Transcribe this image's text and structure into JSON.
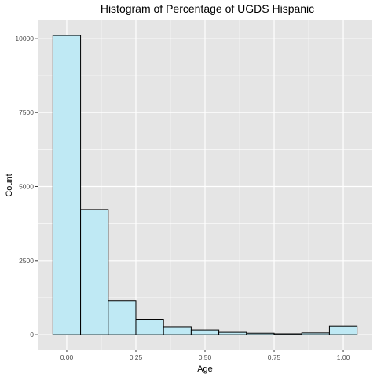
{
  "chart_data": {
    "type": "bar",
    "title": "Histogram of Percentage of UGDS Hispanic",
    "xlabel": "Age",
    "ylabel": "Count",
    "bins": [
      {
        "start": -0.05,
        "end": 0.05,
        "count": 10100
      },
      {
        "start": 0.05,
        "end": 0.15,
        "count": 4220
      },
      {
        "start": 0.15,
        "end": 0.25,
        "count": 1150
      },
      {
        "start": 0.25,
        "end": 0.35,
        "count": 520
      },
      {
        "start": 0.35,
        "end": 0.45,
        "count": 270
      },
      {
        "start": 0.45,
        "end": 0.55,
        "count": 160
      },
      {
        "start": 0.55,
        "end": 0.65,
        "count": 80
      },
      {
        "start": 0.65,
        "end": 0.75,
        "count": 50
      },
      {
        "start": 0.75,
        "end": 0.85,
        "count": 30
      },
      {
        "start": 0.85,
        "end": 0.95,
        "count": 60
      },
      {
        "start": 0.95,
        "end": 1.05,
        "count": 290
      }
    ],
    "xlim": [
      -0.105,
      1.105
    ],
    "ylim": [
      -500,
      10605
    ],
    "x_ticks": [
      0,
      0.25,
      0.5,
      0.75,
      1
    ],
    "x_tick_labels": [
      "0.00",
      "0.25",
      "0.50",
      "0.75",
      "1.00"
    ],
    "y_ticks": [
      0,
      2500,
      5000,
      7500,
      10000
    ],
    "y_tick_labels": [
      "0",
      "2500",
      "5000",
      "7500",
      "10000"
    ],
    "grid": true,
    "colors": {
      "panel_background": "#e5e5e5",
      "grid_major": "#ffffff",
      "bar_fill": "#bfe9f4",
      "bar_outline": "#000000",
      "tick_label": "#4d4d4d"
    }
  }
}
